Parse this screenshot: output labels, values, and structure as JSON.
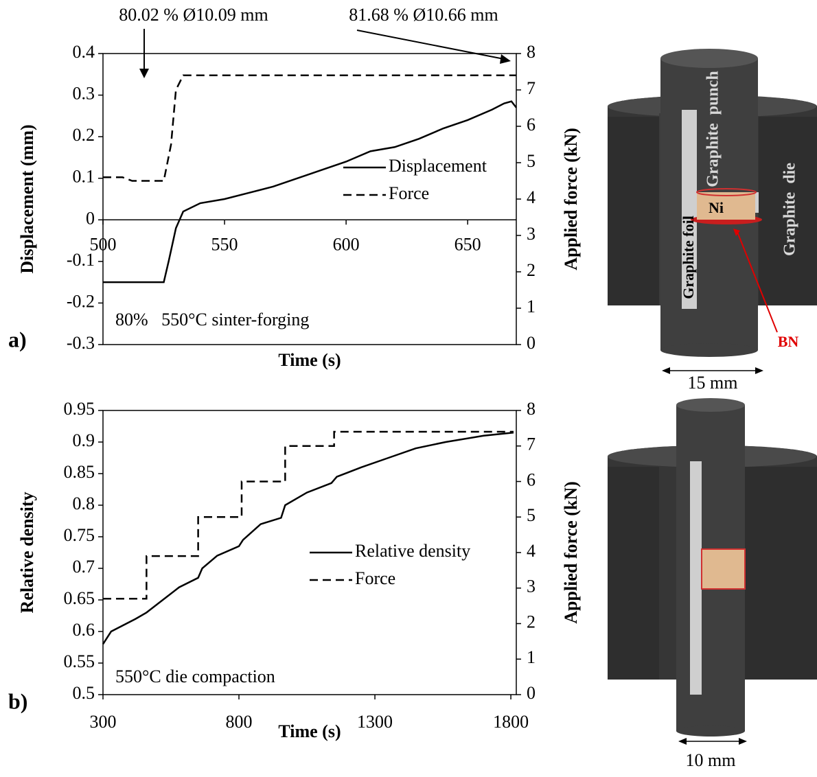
{
  "chart_data": [
    {
      "type": "line",
      "panel_label": "a)",
      "xlabel": "Time (s)",
      "ylabel": "Displacement (mm)",
      "y2label": "Applied force (kN)",
      "xlim": [
        500,
        670
      ],
      "xticks": [
        500,
        550,
        600,
        650
      ],
      "ylim": [
        -0.3,
        0.4
      ],
      "yticks": [
        -0.3,
        -0.2,
        -0.1,
        0,
        0.1,
        0.2,
        0.3,
        0.4
      ],
      "y2lim": [
        0,
        8
      ],
      "y2ticks": [
        0,
        1,
        2,
        3,
        4,
        5,
        6,
        7,
        8
      ],
      "x_axis_crosses": 0,
      "legend": "center right",
      "grid": false,
      "annotations": [
        "80.02 % Ø10.09 mm",
        "81.68 % Ø10.66 mm",
        "80%   550°C sinter-forging"
      ],
      "series": [
        {
          "name": "Displacement",
          "color": "#000000",
          "dashed": false,
          "x": [
            500,
            525,
            527,
            530,
            533,
            540,
            550,
            560,
            570,
            580,
            590,
            600,
            610,
            620,
            630,
            640,
            650,
            660,
            665,
            668,
            670
          ],
          "values": [
            -0.15,
            -0.15,
            -0.1,
            -0.02,
            0.02,
            0.04,
            0.05,
            0.065,
            0.08,
            0.1,
            0.12,
            0.14,
            0.165,
            0.175,
            0.195,
            0.22,
            0.24,
            0.265,
            0.28,
            0.285,
            0.27
          ]
        },
        {
          "name": "Force",
          "color": "#000000",
          "dashed": true,
          "axis": "y2",
          "x": [
            500,
            508,
            512,
            525,
            528,
            530,
            533,
            670
          ],
          "values": [
            4.6,
            4.6,
            4.5,
            4.5,
            5.5,
            7.0,
            7.4,
            7.4
          ]
        }
      ]
    },
    {
      "type": "line",
      "panel_label": "b)",
      "xlabel": "Time (s)",
      "ylabel": "Relative density",
      "y2label": "Applied force (kN)",
      "xlim": [
        300,
        1820
      ],
      "xticks": [
        300,
        800,
        1300,
        1800
      ],
      "ylim": [
        0.5,
        0.95
      ],
      "yticks": [
        0.5,
        0.55,
        0.6,
        0.65,
        0.7,
        0.75,
        0.8,
        0.85,
        0.9,
        0.95
      ],
      "y2lim": [
        0,
        8
      ],
      "y2ticks": [
        0,
        1,
        2,
        3,
        4,
        5,
        6,
        7,
        8
      ],
      "legend": "center",
      "grid": false,
      "annotations": [
        "550°C die compaction"
      ],
      "series": [
        {
          "name": "Relative density",
          "color": "#000000",
          "dashed": false,
          "x": [
            300,
            330,
            420,
            460,
            520,
            580,
            650,
            665,
            720,
            800,
            815,
            880,
            955,
            970,
            1050,
            1140,
            1160,
            1250,
            1350,
            1450,
            1560,
            1700,
            1810
          ],
          "values": [
            0.58,
            0.6,
            0.62,
            0.63,
            0.65,
            0.67,
            0.685,
            0.7,
            0.72,
            0.735,
            0.745,
            0.77,
            0.78,
            0.8,
            0.82,
            0.835,
            0.845,
            0.86,
            0.875,
            0.89,
            0.9,
            0.91,
            0.915
          ]
        },
        {
          "name": "Force",
          "color": "#000000",
          "dashed": true,
          "axis": "y2",
          "x": [
            300,
            460,
            460,
            650,
            650,
            810,
            810,
            970,
            970,
            1150,
            1150,
            1810
          ],
          "values": [
            2.7,
            2.7,
            3.9,
            3.9,
            5.0,
            5.0,
            6.0,
            6.0,
            7.0,
            7.0,
            7.4,
            7.4
          ]
        }
      ]
    }
  ],
  "diagrams": {
    "top": {
      "punch": "Graphite  punch",
      "die": "Graphite  die",
      "foil": "Graphite foil",
      "sample": "Ni",
      "bn": "BN",
      "width": "15 mm"
    },
    "bottom": {
      "width": "10 mm"
    }
  }
}
